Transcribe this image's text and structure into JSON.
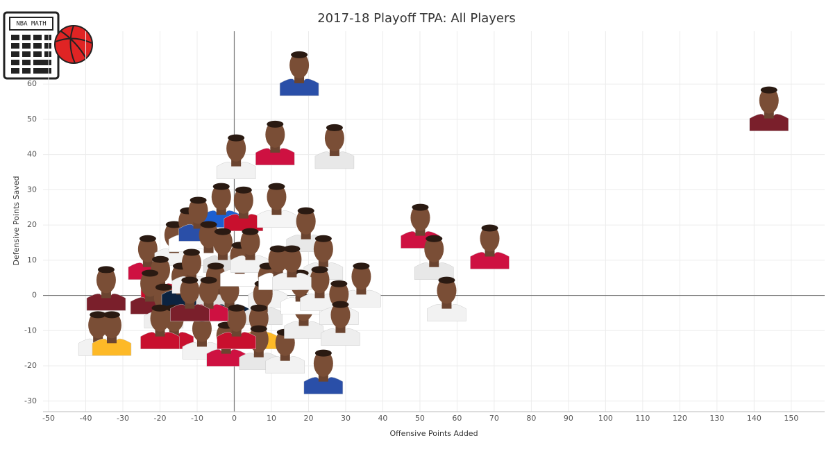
{
  "logo_text": "NBA MATH",
  "chart_data": {
    "type": "scatter",
    "title": "2017-18 Playoff TPA: All Players",
    "x_label": "Offensive Points Added",
    "y_label": "Defensive Points Saved",
    "xlim": [
      -51.5,
      159
    ],
    "ylim": [
      -33,
      75
    ],
    "xticks": [
      -50,
      -40,
      -30,
      -20,
      -10,
      0,
      10,
      20,
      30,
      40,
      50,
      60,
      70,
      80,
      90,
      100,
      110,
      120,
      130,
      140,
      150
    ],
    "yticks": [
      -30,
      -20,
      -10,
      0,
      10,
      20,
      30,
      40,
      50,
      60
    ],
    "grid": true,
    "x": [
      17.5,
      144,
      11,
      27,
      0.5,
      -3.5,
      2.5,
      11.4,
      19.3,
      50.1,
      68.8,
      53.8,
      57.2,
      24,
      34.2,
      -34.5,
      -36.7,
      -33,
      -23.3,
      -16.2,
      -12.4,
      -9.7,
      -6.9,
      -3.1,
      -19.9,
      -22.7,
      -19,
      -14.3,
      -11.5,
      -16.2,
      -20,
      -8.7,
      -2.2,
      -5,
      -1.3,
      1.5,
      4.3,
      9,
      7.7,
      6.6,
      6.6,
      13.7,
      18.7,
      17.8,
      23,
      28.2,
      28.6,
      24,
      11.8,
      15.5,
      0.6,
      -6.9,
      -12
    ],
    "y": [
      63,
      53,
      43.3,
      42.3,
      39.4,
      25.6,
      24.6,
      25.6,
      18.7,
      19.7,
      13.8,
      10.8,
      -1,
      10.8,
      3,
      2,
      -10.8,
      -10.8,
      10.8,
      14.8,
      18.7,
      21.7,
      14.8,
      12.8,
      4.9,
      1,
      -3,
      3,
      6.9,
      -8.9,
      -8.9,
      -11.8,
      -13.8,
      3,
      -1,
      8.9,
      12.8,
      3,
      -2,
      -8.9,
      -14.8,
      -15.8,
      -5.9,
      1,
      2,
      -2,
      -7.9,
      -21.7,
      7.9,
      7.9,
      -8.9,
      -1,
      -1
    ],
    "colors": [
      "#2a4fa8",
      "#7a1f2b",
      "#ce1141",
      "#e8e8e8",
      "#f2f2f2",
      "#1d5fd1",
      "#c8102e",
      "#f5f5f5",
      "#e8e8e8",
      "#ce1141",
      "#ce1141",
      "#e8e8e8",
      "#f2f2f2",
      "#eeeeee",
      "#f2f2f2",
      "#7a1f2b",
      "#f2f2f2",
      "#fdb927",
      "#ce1141",
      "#f2f2f2",
      "#ffffff",
      "#2a4fa8",
      "#ffffff",
      "#e0e0e0",
      "#c8102e",
      "#7a1f2b",
      "#eeeeee",
      "#0c2340",
      "#f2f2f2",
      "#c8102e",
      "#c8102e",
      "#f2f2f2",
      "#ce1141",
      "#e0e0e0",
      "#0c2340",
      "#ffffff",
      "#f2f2f2",
      "#f2f2f2",
      "#e8e8e8",
      "#fdb927",
      "#e8e8e8",
      "#f2f2f2",
      "#eeeeee",
      "#ffffff",
      "#f2f2f2",
      "#f2f2f2",
      "#eeeeee",
      "#2a4fa8",
      "#ffffff",
      "#f2f2f2",
      "#c8102e",
      "#ce1141",
      "#7a1f2b"
    ]
  }
}
